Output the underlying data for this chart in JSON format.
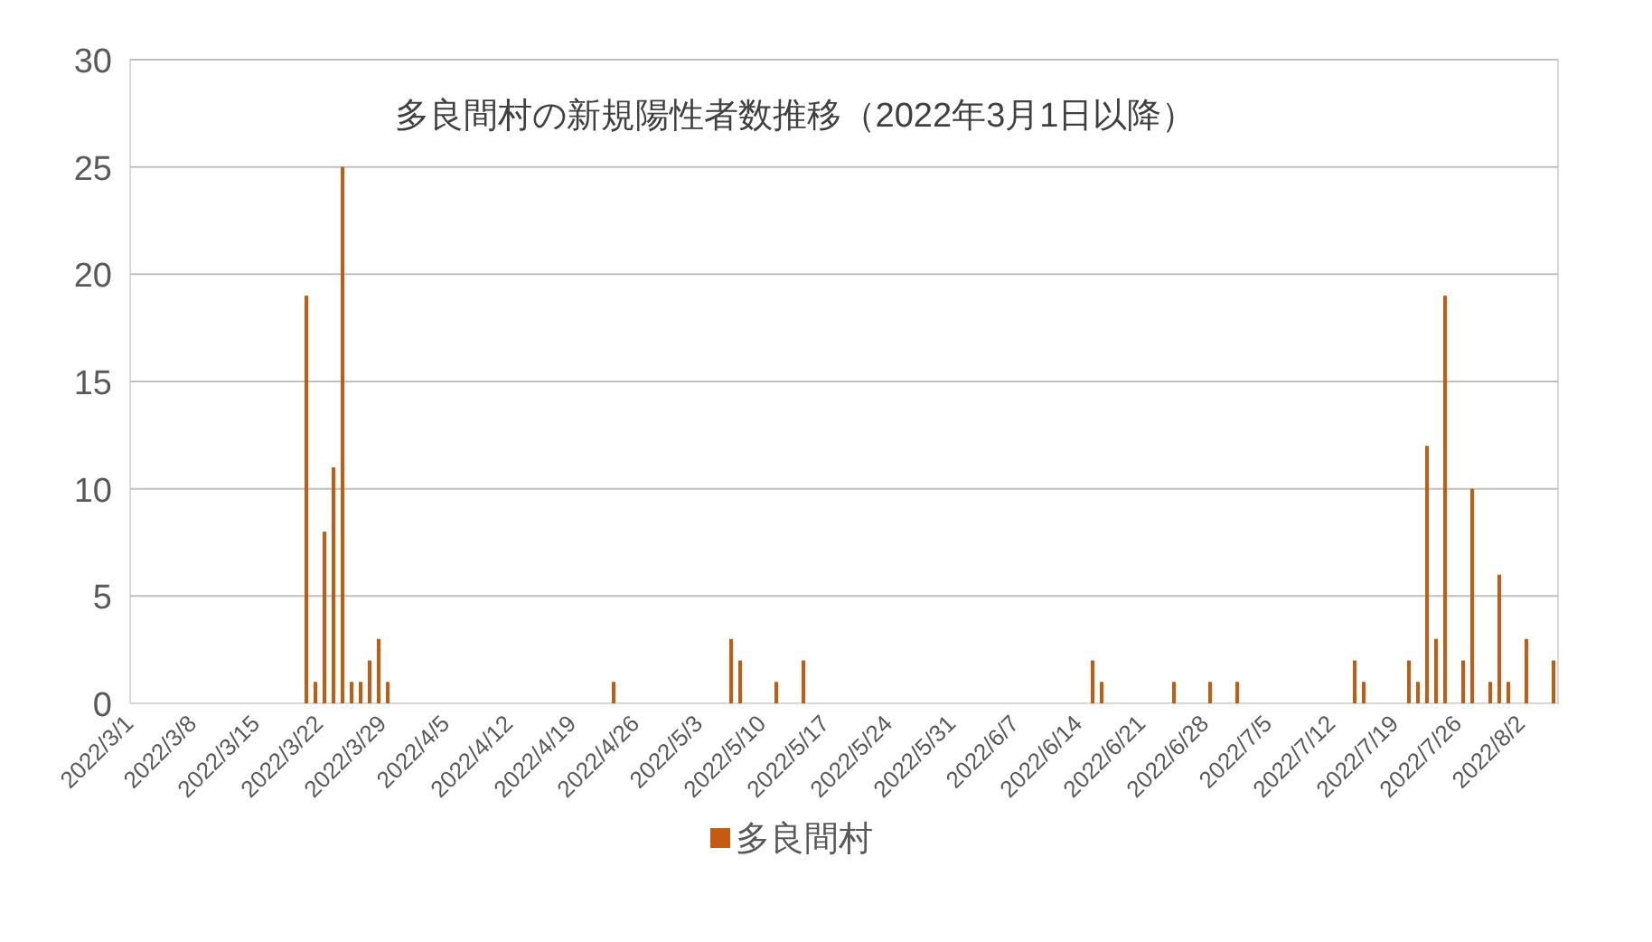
{
  "chart_data": {
    "type": "bar",
    "title": "多良間村の新規陽性者数推移（2022年3月1日以降）",
    "categories": [
      "2022/3/1",
      null,
      null,
      null,
      null,
      null,
      null,
      "2022/3/8",
      null,
      null,
      null,
      null,
      null,
      null,
      "2022/3/15",
      null,
      null,
      null,
      null,
      null,
      null,
      "2022/3/22",
      null,
      null,
      null,
      null,
      null,
      null,
      "2022/3/29",
      null,
      null,
      null,
      null,
      null,
      null,
      "2022/4/5",
      null,
      null,
      null,
      null,
      null,
      null,
      "2022/4/12",
      null,
      null,
      null,
      null,
      null,
      null,
      "2022/4/19",
      null,
      null,
      null,
      null,
      null,
      null,
      "2022/4/26",
      null,
      null,
      null,
      null,
      null,
      null,
      "2022/5/3",
      null,
      null,
      null,
      null,
      null,
      null,
      "2022/5/10",
      null,
      null,
      null,
      null,
      null,
      null,
      "2022/5/17",
      null,
      null,
      null,
      null,
      null,
      null,
      "2022/5/24",
      null,
      null,
      null,
      null,
      null,
      null,
      "2022/5/31",
      null,
      null,
      null,
      null,
      null,
      null,
      "2022/6/7",
      null,
      null,
      null,
      null,
      null,
      null,
      "2022/6/14",
      null,
      null,
      null,
      null,
      null,
      null,
      "2022/6/21",
      null,
      null,
      null,
      null,
      null,
      null,
      "2022/6/28",
      null,
      null,
      null,
      null,
      null,
      null,
      "2022/7/5",
      null,
      null,
      null,
      null,
      null,
      null,
      "2022/7/12",
      null,
      null,
      null,
      null,
      null,
      null,
      "2022/7/19",
      null,
      null,
      null,
      null,
      null,
      null,
      "2022/7/26",
      null,
      null,
      null,
      null,
      null,
      null,
      "2022/8/2",
      null,
      null,
      null
    ],
    "series": [
      {
        "name": "多良間村",
        "color": "#c55a11",
        "values": [
          0,
          0,
          0,
          0,
          0,
          0,
          0,
          0,
          0,
          0,
          0,
          0,
          0,
          0,
          0,
          0,
          0,
          0,
          0,
          19,
          1,
          8,
          11,
          25,
          1,
          1,
          2,
          3,
          1,
          0,
          0,
          0,
          0,
          0,
          0,
          0,
          0,
          0,
          0,
          0,
          0,
          0,
          0,
          0,
          0,
          0,
          0,
          0,
          0,
          0,
          0,
          0,
          0,
          1,
          0,
          0,
          0,
          0,
          0,
          0,
          0,
          0,
          0,
          0,
          0,
          0,
          3,
          2,
          0,
          0,
          0,
          1,
          0,
          0,
          2,
          0,
          0,
          0,
          0,
          0,
          0,
          0,
          0,
          0,
          0,
          0,
          0,
          0,
          0,
          0,
          0,
          0,
          0,
          0,
          0,
          0,
          0,
          0,
          0,
          0,
          0,
          0,
          0,
          0,
          0,
          0,
          2,
          1,
          0,
          0,
          0,
          0,
          0,
          0,
          0,
          1,
          0,
          0,
          0,
          1,
          0,
          0,
          1,
          0,
          0,
          0,
          0,
          0,
          0,
          0,
          0,
          0,
          0,
          0,
          0,
          2,
          1,
          0,
          0,
          0,
          0,
          2,
          1,
          12,
          3,
          19,
          0,
          2,
          10,
          0,
          1,
          6,
          1,
          0,
          3,
          0,
          0,
          2
        ]
      }
    ],
    "ylim": [
      0,
      30
    ],
    "yticks": [
      0,
      5,
      10,
      15,
      20,
      25,
      30
    ],
    "grid": "y",
    "legend": "bottom"
  }
}
